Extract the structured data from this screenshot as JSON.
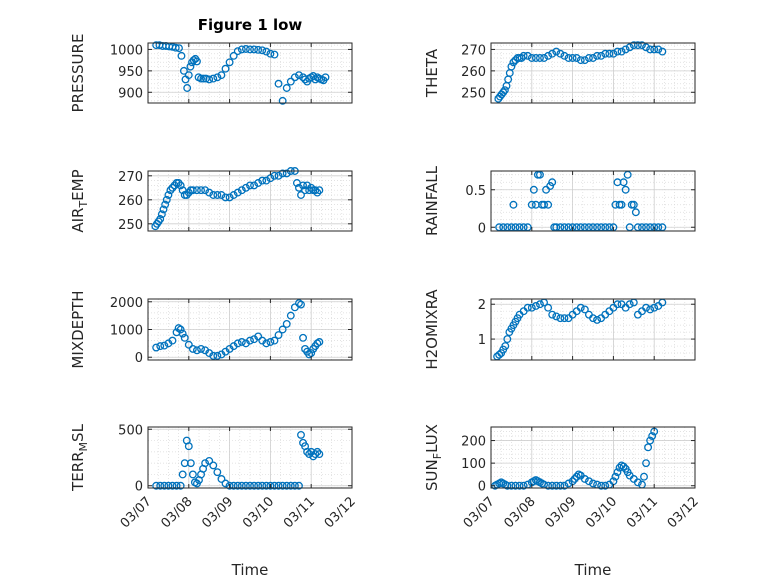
{
  "figure": {
    "title": "Figure 1 low"
  },
  "chart_data": [
    {
      "type": "scatter",
      "ylabel": "PRESSURE",
      "title": "Figure 1 low",
      "xlim": [
        0,
        5
      ],
      "ylim": [
        875,
        1015
      ],
      "yticks": [
        900,
        950,
        1000
      ],
      "xticks": [],
      "xlabel": "",
      "grid": true,
      "marker": "open-circle",
      "color": "#0072BD",
      "x": [
        0.2,
        0.28,
        0.36,
        0.44,
        0.52,
        0.6,
        0.68,
        0.76,
        0.82,
        0.88,
        0.92,
        0.96,
        1.0,
        1.04,
        1.08,
        1.12,
        1.16,
        1.2,
        1.24,
        1.3,
        1.36,
        1.42,
        1.5,
        1.6,
        1.7,
        1.8,
        1.9,
        2.0,
        2.1,
        2.2,
        2.3,
        2.4,
        2.5,
        2.6,
        2.7,
        2.8,
        2.9,
        3.0,
        3.1,
        3.2,
        3.3,
        3.4,
        3.5,
        3.6,
        3.7,
        3.8,
        3.85,
        3.9,
        3.95,
        4.0,
        4.05,
        4.1,
        4.15,
        4.2,
        4.25,
        4.3,
        4.35
      ],
      "y": [
        1010,
        1010,
        1008,
        1008,
        1007,
        1006,
        1004,
        1003,
        985,
        950,
        930,
        910,
        940,
        960,
        970,
        975,
        978,
        972,
        935,
        932,
        932,
        932,
        930,
        932,
        935,
        940,
        955,
        970,
        985,
        996,
        1000,
        1001,
        1000,
        1000,
        999,
        998,
        995,
        990,
        988,
        920,
        880,
        910,
        925,
        935,
        940,
        935,
        930,
        925,
        932,
        935,
        938,
        930,
        935,
        932,
        930,
        928,
        935
      ]
    },
    {
      "type": "scatter",
      "ylabel": "THETA",
      "xlim": [
        0,
        5
      ],
      "ylim": [
        245,
        273
      ],
      "yticks": [
        250,
        260,
        270
      ],
      "xticks": [],
      "xlabel": "",
      "grid": true,
      "marker": "open-circle",
      "color": "#0072BD",
      "x": [
        0.18,
        0.22,
        0.26,
        0.3,
        0.34,
        0.38,
        0.42,
        0.46,
        0.5,
        0.55,
        0.6,
        0.65,
        0.7,
        0.75,
        0.8,
        0.9,
        1.0,
        1.1,
        1.2,
        1.3,
        1.4,
        1.5,
        1.6,
        1.7,
        1.8,
        1.9,
        2.0,
        2.1,
        2.2,
        2.3,
        2.4,
        2.5,
        2.6,
        2.7,
        2.8,
        2.9,
        3.0,
        3.1,
        3.2,
        3.3,
        3.4,
        3.5,
        3.6,
        3.7,
        3.8,
        3.9,
        4.0,
        4.1,
        4.2
      ],
      "y": [
        247,
        248,
        249,
        250,
        251,
        253,
        256,
        259,
        262,
        264,
        265,
        266,
        266,
        266,
        267,
        267,
        266,
        266,
        266,
        266,
        267,
        268,
        269,
        268,
        267,
        266,
        266,
        266,
        265,
        265,
        266,
        266,
        267,
        267,
        268,
        268,
        268,
        269,
        269,
        270,
        271,
        272,
        272,
        272,
        271,
        270,
        270,
        270,
        269
      ]
    },
    {
      "type": "scatter",
      "ylabel": "AIR_TEMP",
      "xlim": [
        0,
        5
      ],
      "ylim": [
        247,
        272
      ],
      "yticks": [
        250,
        260,
        270
      ],
      "xticks": [],
      "xlabel": "",
      "grid": true,
      "marker": "open-circle",
      "color": "#0072BD",
      "x": [
        0.18,
        0.22,
        0.26,
        0.3,
        0.34,
        0.38,
        0.42,
        0.46,
        0.5,
        0.55,
        0.6,
        0.65,
        0.7,
        0.75,
        0.8,
        0.85,
        0.9,
        0.95,
        1.0,
        1.05,
        1.1,
        1.2,
        1.3,
        1.4,
        1.5,
        1.6,
        1.7,
        1.8,
        1.9,
        2.0,
        2.1,
        2.2,
        2.3,
        2.4,
        2.5,
        2.6,
        2.7,
        2.8,
        2.9,
        3.0,
        3.1,
        3.2,
        3.3,
        3.4,
        3.5,
        3.6,
        3.65,
        3.7,
        3.75,
        3.8,
        3.85,
        3.9,
        3.95,
        4.0,
        4.05,
        4.1,
        4.15,
        4.2
      ],
      "y": [
        249,
        250,
        251,
        252,
        254,
        256,
        258,
        260,
        262,
        264,
        265,
        266,
        267,
        267,
        266,
        264,
        262,
        262,
        263,
        264,
        264,
        264,
        264,
        264,
        263,
        262,
        262,
        262,
        261,
        261,
        262,
        263,
        264,
        265,
        266,
        266,
        267,
        268,
        268,
        269,
        270,
        270,
        271,
        271,
        272,
        272,
        267,
        265,
        262,
        266,
        264,
        266,
        264,
        265,
        264,
        264,
        263,
        264
      ]
    },
    {
      "type": "scatter",
      "ylabel": "RAINFALL",
      "xlim": [
        0,
        5
      ],
      "ylim": [
        -0.05,
        0.75
      ],
      "yticks": [
        0,
        0.5
      ],
      "xticks": [],
      "xlabel": "",
      "grid": true,
      "marker": "open-circle",
      "color": "#0072BD",
      "x": [
        0.2,
        0.3,
        0.4,
        0.5,
        0.55,
        0.6,
        0.7,
        0.8,
        0.9,
        1.0,
        1.05,
        1.1,
        1.15,
        1.2,
        1.25,
        1.3,
        1.35,
        1.4,
        1.45,
        1.5,
        1.55,
        1.6,
        1.7,
        1.8,
        1.9,
        2.0,
        2.1,
        2.2,
        2.3,
        2.4,
        2.5,
        2.6,
        2.7,
        2.8,
        2.9,
        3.0,
        3.05,
        3.1,
        3.15,
        3.2,
        3.25,
        3.3,
        3.35,
        3.4,
        3.45,
        3.5,
        3.55,
        3.6,
        3.7,
        3.8,
        3.9,
        4.0,
        4.1,
        4.2
      ],
      "y": [
        0,
        0,
        0,
        0,
        0.3,
        0,
        0,
        0,
        0,
        0.3,
        0.5,
        0.3,
        0.7,
        0.7,
        0.3,
        0.3,
        0.5,
        0.3,
        0.55,
        0.6,
        0,
        0,
        0,
        0,
        0,
        0,
        0,
        0,
        0,
        0,
        0,
        0,
        0,
        0,
        0,
        0,
        0.3,
        0.6,
        0.3,
        0.3,
        0.6,
        0.5,
        0.7,
        0,
        0.3,
        0.3,
        0.2,
        0,
        0,
        0,
        0,
        0,
        0,
        0
      ]
    },
    {
      "type": "scatter",
      "ylabel": "MIXDEPTH",
      "xlim": [
        0,
        5
      ],
      "ylim": [
        -100,
        2100
      ],
      "yticks": [
        0,
        1000,
        2000
      ],
      "xticks": [],
      "xlabel": "",
      "grid": true,
      "marker": "open-circle",
      "color": "#0072BD",
      "x": [
        0.2,
        0.3,
        0.4,
        0.5,
        0.6,
        0.7,
        0.75,
        0.8,
        0.85,
        0.9,
        1.0,
        1.1,
        1.2,
        1.3,
        1.4,
        1.5,
        1.6,
        1.7,
        1.8,
        1.9,
        2.0,
        2.1,
        2.2,
        2.3,
        2.4,
        2.5,
        2.6,
        2.7,
        2.8,
        2.9,
        3.0,
        3.1,
        3.2,
        3.3,
        3.4,
        3.5,
        3.6,
        3.7,
        3.75,
        3.8,
        3.85,
        3.9,
        3.95,
        4.0,
        4.05,
        4.1,
        4.15,
        4.2
      ],
      "y": [
        350,
        400,
        420,
        500,
        600,
        900,
        1050,
        1000,
        850,
        700,
        450,
        300,
        250,
        300,
        250,
        150,
        50,
        50,
        100,
        200,
        300,
        400,
        500,
        550,
        500,
        600,
        650,
        750,
        600,
        500,
        550,
        600,
        800,
        1000,
        1200,
        1500,
        1800,
        1950,
        1900,
        700,
        300,
        200,
        100,
        150,
        300,
        400,
        500,
        550
      ]
    },
    {
      "type": "scatter",
      "ylabel": "H2OMIXRA",
      "xlim": [
        0,
        5
      ],
      "ylim": [
        0.4,
        2.15
      ],
      "yticks": [
        1,
        2
      ],
      "xticks": [],
      "xlabel": "",
      "grid": true,
      "marker": "open-circle",
      "color": "#0072BD",
      "x": [
        0.15,
        0.2,
        0.25,
        0.3,
        0.35,
        0.4,
        0.45,
        0.5,
        0.55,
        0.6,
        0.65,
        0.7,
        0.8,
        0.9,
        1.0,
        1.1,
        1.2,
        1.3,
        1.4,
        1.5,
        1.6,
        1.7,
        1.8,
        1.9,
        2.0,
        2.1,
        2.2,
        2.3,
        2.4,
        2.5,
        2.6,
        2.7,
        2.8,
        2.9,
        3.0,
        3.1,
        3.2,
        3.3,
        3.4,
        3.5,
        3.6,
        3.7,
        3.8,
        3.9,
        4.0,
        4.1,
        4.2
      ],
      "y": [
        0.5,
        0.55,
        0.6,
        0.7,
        0.8,
        1.0,
        1.2,
        1.3,
        1.4,
        1.5,
        1.6,
        1.7,
        1.8,
        1.9,
        1.9,
        1.95,
        2.0,
        2.05,
        1.9,
        1.7,
        1.65,
        1.6,
        1.6,
        1.6,
        1.7,
        1.8,
        1.9,
        1.85,
        1.7,
        1.6,
        1.55,
        1.6,
        1.7,
        1.8,
        1.9,
        2.0,
        2.0,
        1.9,
        2.0,
        2.05,
        1.7,
        1.8,
        1.9,
        1.85,
        1.9,
        1.95,
        2.05
      ]
    },
    {
      "type": "scatter",
      "ylabel": "TERR_MSL",
      "xlim": [
        0,
        5
      ],
      "ylim": [
        -20,
        520
      ],
      "yticks": [
        0,
        500
      ],
      "xticks": [
        "03/07",
        "03/08",
        "03/09",
        "03/10",
        "03/11",
        "03/12"
      ],
      "xlabel": "Time",
      "grid": true,
      "marker": "open-circle",
      "color": "#0072BD",
      "x": [
        0.2,
        0.3,
        0.4,
        0.5,
        0.6,
        0.7,
        0.8,
        0.85,
        0.9,
        0.95,
        1.0,
        1.05,
        1.1,
        1.15,
        1.2,
        1.25,
        1.3,
        1.35,
        1.4,
        1.5,
        1.6,
        1.7,
        1.8,
        1.9,
        2.0,
        2.1,
        2.2,
        2.3,
        2.4,
        2.5,
        2.6,
        2.7,
        2.8,
        2.9,
        3.0,
        3.1,
        3.2,
        3.3,
        3.4,
        3.5,
        3.6,
        3.7,
        3.75,
        3.8,
        3.85,
        3.9,
        3.95,
        4.0,
        4.05,
        4.1,
        4.15,
        4.2
      ],
      "y": [
        0,
        0,
        0,
        0,
        0,
        0,
        0,
        100,
        200,
        400,
        350,
        200,
        100,
        30,
        20,
        50,
        100,
        150,
        200,
        220,
        180,
        120,
        60,
        20,
        0,
        0,
        0,
        0,
        0,
        0,
        0,
        0,
        0,
        0,
        0,
        0,
        0,
        0,
        0,
        0,
        0,
        0,
        450,
        380,
        350,
        300,
        280,
        300,
        260,
        280,
        300,
        280
      ]
    },
    {
      "type": "scatter",
      "ylabel": "SUN_FLUX",
      "xlim": [
        0,
        5
      ],
      "ylim": [
        -10,
        260
      ],
      "yticks": [
        0,
        100,
        200
      ],
      "xticks": [
        "03/07",
        "03/08",
        "03/09",
        "03/10",
        "03/11",
        "03/12"
      ],
      "xlabel": "Time",
      "grid": true,
      "marker": "open-circle",
      "color": "#0072BD",
      "x": [
        0.1,
        0.15,
        0.2,
        0.25,
        0.3,
        0.35,
        0.4,
        0.5,
        0.6,
        0.7,
        0.8,
        0.9,
        1.0,
        1.05,
        1.1,
        1.15,
        1.2,
        1.25,
        1.3,
        1.4,
        1.5,
        1.6,
        1.7,
        1.8,
        1.9,
        2.0,
        2.05,
        2.1,
        2.15,
        2.2,
        2.3,
        2.4,
        2.5,
        2.6,
        2.7,
        2.8,
        2.9,
        3.0,
        3.05,
        3.1,
        3.15,
        3.2,
        3.25,
        3.3,
        3.35,
        3.4,
        3.5,
        3.6,
        3.7,
        3.75,
        3.8,
        3.85,
        3.9,
        3.95,
        4.0
      ],
      "y": [
        0,
        5,
        10,
        15,
        10,
        5,
        0,
        0,
        0,
        0,
        0,
        5,
        15,
        20,
        25,
        20,
        15,
        10,
        5,
        0,
        0,
        0,
        0,
        0,
        10,
        20,
        30,
        40,
        50,
        45,
        30,
        20,
        10,
        5,
        0,
        0,
        5,
        20,
        40,
        60,
        80,
        90,
        85,
        75,
        60,
        45,
        30,
        15,
        5,
        40,
        100,
        170,
        200,
        220,
        240
      ]
    }
  ]
}
